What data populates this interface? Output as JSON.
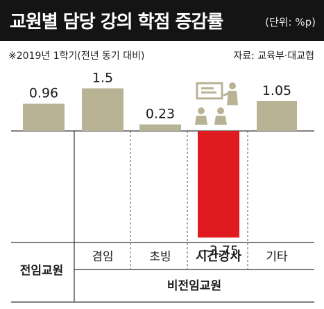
{
  "header": {
    "title": "교원별 담당 강의 학점 증감률",
    "unit": "(단위: %p)"
  },
  "note": "※2019년 1학기(전년 동기 대비)",
  "source": "자료: 교육부·대교협",
  "chart_data": {
    "type": "bar",
    "categories": [
      "",
      "겸임",
      "초빙",
      "시간강사",
      "기타"
    ],
    "values": [
      0.96,
      1.5,
      0.23,
      -3.75,
      1.05
    ],
    "value_labels": [
      "0.96",
      "1.5",
      "0.23",
      "−3.75",
      "1.05"
    ],
    "highlight_index": 3,
    "groups": [
      "전임교원",
      "비전임교원"
    ],
    "colors": {
      "default": "#b8b394",
      "highlight": "#e01b1f"
    },
    "ylim": [
      -4.0,
      1.6
    ]
  }
}
